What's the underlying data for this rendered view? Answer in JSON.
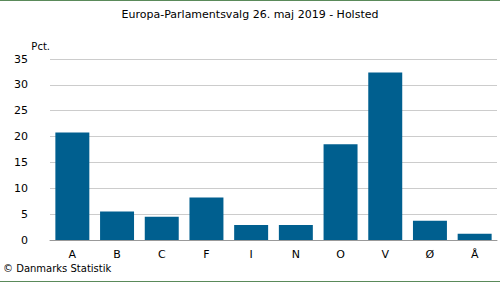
{
  "chart_data": {
    "type": "bar",
    "title": "Europa-Parlamentsvalg 26. maj 2019 - Holsted",
    "ylabel": "Pct.",
    "categories": [
      "A",
      "B",
      "C",
      "F",
      "I",
      "N",
      "O",
      "V",
      "Ø",
      "Å"
    ],
    "values": [
      20.8,
      5.5,
      4.5,
      8.2,
      2.9,
      2.9,
      18.5,
      32.4,
      3.7,
      1.2
    ],
    "color": "#005f8f",
    "ylim": [
      0,
      35
    ],
    "yticks": [
      0,
      5,
      10,
      15,
      20,
      25,
      30,
      35
    ],
    "grid": true,
    "annotations": [
      "© Danmarks Statistik"
    ]
  }
}
